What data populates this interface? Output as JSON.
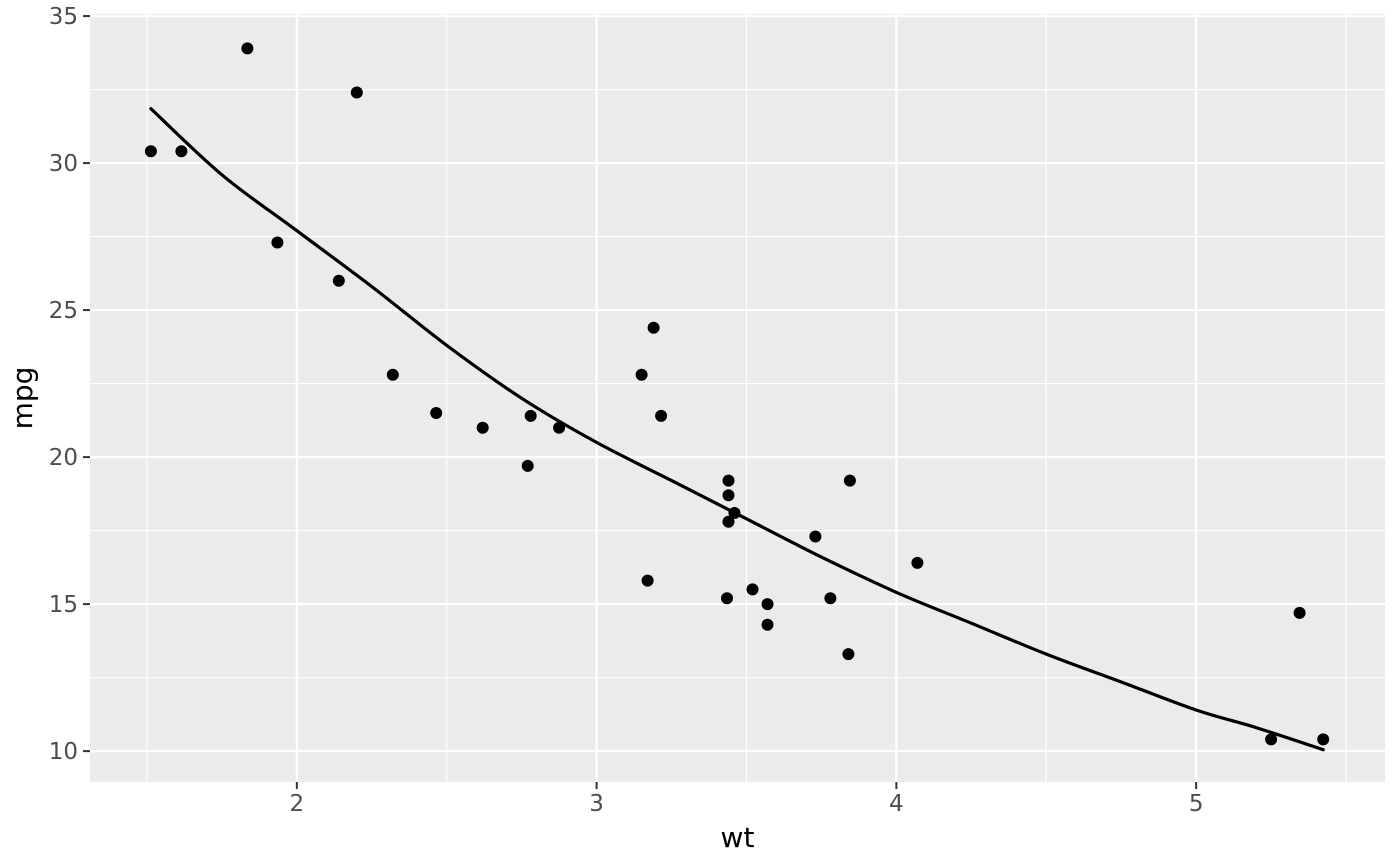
{
  "chart_data": {
    "type": "scatter",
    "title": "",
    "xlabel": "wt",
    "ylabel": "mpg",
    "x_domain": [
      1.31,
      5.63
    ],
    "y_domain": [
      8.95,
      35.07
    ],
    "x_ticks_major": [
      2,
      3,
      4,
      5
    ],
    "x_ticks_minor": [
      1.5,
      2.5,
      3.5,
      4.5,
      5.5
    ],
    "y_ticks_major": [
      10,
      15,
      20,
      25,
      30,
      35
    ],
    "y_ticks_minor": [
      12.5,
      17.5,
      22.5,
      27.5,
      32.5
    ],
    "grid": true,
    "legend": "none",
    "points": [
      [
        2.62,
        21.0
      ],
      [
        2.875,
        21.0
      ],
      [
        2.32,
        22.8
      ],
      [
        3.215,
        21.4
      ],
      [
        3.44,
        18.7
      ],
      [
        3.46,
        18.1
      ],
      [
        3.57,
        14.3
      ],
      [
        3.19,
        24.4
      ],
      [
        3.15,
        22.8
      ],
      [
        3.44,
        19.2
      ],
      [
        3.44,
        17.8
      ],
      [
        4.07,
        16.4
      ],
      [
        3.73,
        17.3
      ],
      [
        3.78,
        15.2
      ],
      [
        5.25,
        10.4
      ],
      [
        5.424,
        10.4
      ],
      [
        5.345,
        14.7
      ],
      [
        2.2,
        32.4
      ],
      [
        1.615,
        30.4
      ],
      [
        1.835,
        33.9
      ],
      [
        2.465,
        21.5
      ],
      [
        3.52,
        15.5
      ],
      [
        3.435,
        15.2
      ],
      [
        3.84,
        13.3
      ],
      [
        3.845,
        19.2
      ],
      [
        1.935,
        27.3
      ],
      [
        2.14,
        26.0
      ],
      [
        1.513,
        30.4
      ],
      [
        3.17,
        15.8
      ],
      [
        2.77,
        19.7
      ],
      [
        3.57,
        15.0
      ],
      [
        2.78,
        21.4
      ]
    ],
    "smooth_line": [
      [
        1.513,
        31.85
      ],
      [
        1.75,
        29.6
      ],
      [
        2.0,
        27.7
      ],
      [
        2.25,
        25.8
      ],
      [
        2.5,
        23.8
      ],
      [
        2.75,
        22.0
      ],
      [
        3.0,
        20.5
      ],
      [
        3.25,
        19.2
      ],
      [
        3.5,
        17.9
      ],
      [
        3.75,
        16.6
      ],
      [
        4.0,
        15.4
      ],
      [
        4.25,
        14.35
      ],
      [
        4.5,
        13.3
      ],
      [
        4.75,
        12.35
      ],
      [
        5.0,
        11.4
      ],
      [
        5.2,
        10.8
      ],
      [
        5.424,
        10.05
      ]
    ],
    "style": {
      "panel_bg": "#EBEBEB",
      "grid_color": "#FFFFFF",
      "point_color": "#000000",
      "line_color": "#000000",
      "tick_label_color": "#4D4D4D",
      "axis_title_color": "#000000",
      "tick_mark_color": "#333333",
      "outer_bg": "#FFFFFF"
    }
  }
}
